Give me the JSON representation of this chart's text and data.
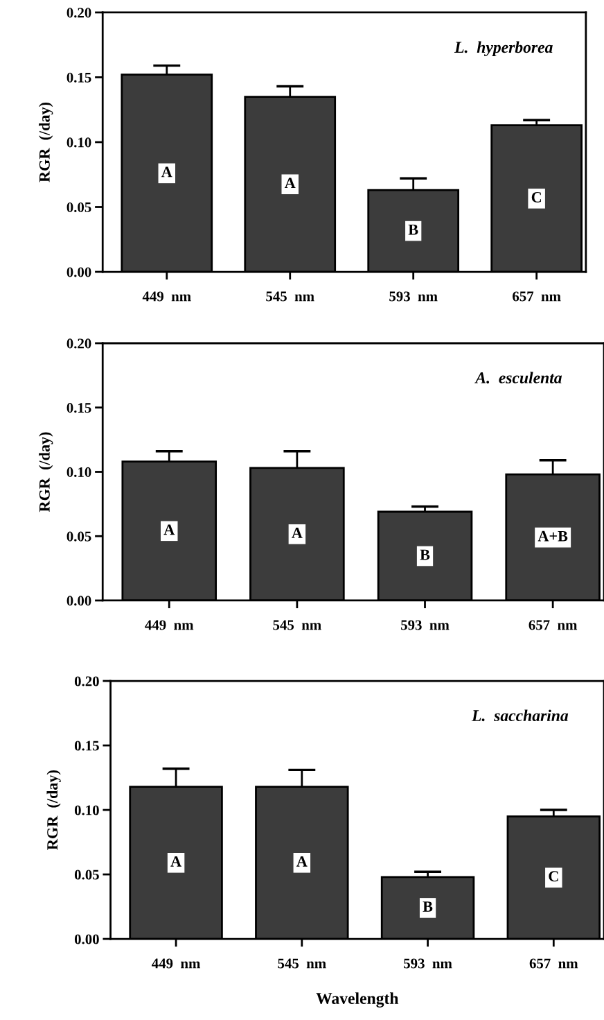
{
  "chart_data": [
    {
      "type": "bar",
      "title": "L.  hyperborea",
      "ylabel": "RGR  (/day)",
      "categories": [
        "449  nm",
        "545  nm",
        "593  nm",
        "657  nm"
      ],
      "values": [
        0.152,
        0.135,
        0.063,
        0.113
      ],
      "errors": [
        0.007,
        0.008,
        0.009,
        0.004
      ],
      "color": "#3c3c3c",
      "ylim": [
        0,
        0.2
      ],
      "yticks": [
        {
          "value": 0,
          "label": "0.00"
        },
        {
          "value": 0.05,
          "label": "0.05"
        },
        {
          "value": 0.1,
          "label": "0.10"
        },
        {
          "value": 0.15,
          "label": "0.15"
        },
        {
          "value": 0.2,
          "label": "0.20"
        }
      ],
      "annotations": [
        "A",
        "A",
        "B",
        "C"
      ]
    },
    {
      "type": "bar",
      "title": "A.  esculenta",
      "ylabel": "RGR  (/day)",
      "categories": [
        "449  nm",
        "545  nm",
        "593  nm",
        "657  nm"
      ],
      "values": [
        0.108,
        0.103,
        0.069,
        0.098
      ],
      "errors": [
        0.008,
        0.013,
        0.004,
        0.011
      ],
      "color": "#3c3c3c",
      "ylim": [
        0,
        0.2
      ],
      "yticks": [
        {
          "value": 0,
          "label": "0.00"
        },
        {
          "value": 0.05,
          "label": "0.05"
        },
        {
          "value": 0.1,
          "label": "0.10"
        },
        {
          "value": 0.15,
          "label": "0.15"
        },
        {
          "value": 0.2,
          "label": "0.20"
        }
      ],
      "annotations": [
        "A",
        "A",
        "B",
        "A+B"
      ]
    },
    {
      "type": "bar",
      "title": "L.  saccharina",
      "ylabel": "RGR  (/day)",
      "xlabel": "Wavelength",
      "categories": [
        "449  nm",
        "545  nm",
        "593  nm",
        "657  nm"
      ],
      "values": [
        0.118,
        0.118,
        0.048,
        0.095
      ],
      "errors": [
        0.014,
        0.013,
        0.004,
        0.005
      ],
      "color": "#3c3c3c",
      "ylim": [
        0,
        0.2
      ],
      "yticks": [
        {
          "value": 0,
          "label": "0.00"
        },
        {
          "value": 0.05,
          "label": "0.05"
        },
        {
          "value": 0.1,
          "label": "0.10"
        },
        {
          "value": 0.15,
          "label": "0.15"
        },
        {
          "value": 0.2,
          "label": "0.20"
        }
      ],
      "annotations": [
        "A",
        "A",
        "B",
        "C"
      ]
    }
  ]
}
